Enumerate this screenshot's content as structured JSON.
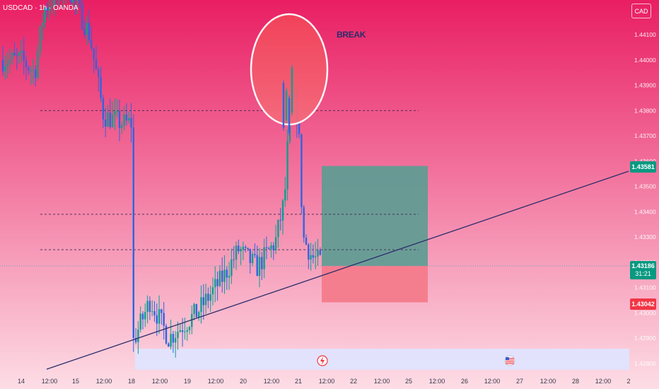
{
  "header": {
    "symbol": "USDCAD",
    "interval": "1h",
    "exchange": "OANDA",
    "title": "USDCAD · 1h · OANDA"
  },
  "currency_button": {
    "label": "CAD"
  },
  "annotation": {
    "label": "BREAK"
  },
  "price_tags": {
    "target": "1.43581",
    "current": "1.43186",
    "countdown": "31:21",
    "stop": "1.43042"
  },
  "event_icons": [
    {
      "name": "lightning-event-icon"
    },
    {
      "name": "us-flag-event-icon"
    }
  ],
  "colors": {
    "bg_top": "#e91e63",
    "bg_bottom": "#fddde6",
    "candle_up": "#0e9f8d",
    "candle_down": "#2f64e0",
    "target_zone": "#5d9c93",
    "stop_zone": "#f47b8b",
    "trendline": "#2b2d6b",
    "circle_fill": "#f44e62",
    "tag_green": "#089981",
    "tag_red": "#f23645"
  },
  "chart_data": {
    "type": "candlestick",
    "symbol": "USDCAD",
    "interval": "1h",
    "ylim": [
      1.4275,
      1.4425
    ],
    "y_ticks": [
      "1.44100",
      "1.44000",
      "1.43900",
      "1.43800",
      "1.43700",
      "1.43600",
      "1.43500",
      "1.43400",
      "1.43300",
      "1.43200",
      "1.43100",
      "1.43000",
      "1.42900",
      "1.42800"
    ],
    "x_ticks": [
      "14",
      "12:00",
      "15",
      "12:00",
      "18",
      "12:00",
      "19",
      "12:00",
      "20",
      "12:00",
      "21",
      "12:00",
      "22",
      "12:00",
      "25",
      "12:00",
      "26",
      "12:00",
      "27",
      "12:00",
      "28",
      "12:00",
      "2"
    ],
    "current_price": 1.43186,
    "horizontal_levels": [
      1.438,
      1.4339,
      1.4325
    ],
    "position": {
      "entry": 1.43186,
      "target": 1.43581,
      "stop": 1.43042
    },
    "trendline": {
      "from": [
        "15 12:00",
        1.4278
      ],
      "to": [
        "2",
        1.4356
      ]
    },
    "ohlc_anchors": [
      {
        "t": "14 00:00",
        "p": 1.44
      },
      {
        "t": "14 06:00",
        "p": 1.4395
      },
      {
        "t": "14 10:00",
        "p": 1.442
      },
      {
        "t": "14 20:00",
        "p": 1.443
      },
      {
        "t": "15 06:00",
        "p": 1.441
      },
      {
        "t": "15 12:00",
        "p": 1.4378
      },
      {
        "t": "15 20:00",
        "p": 1.4375
      },
      {
        "t": "16 00:00",
        "p": 1.4375
      },
      {
        "t": "18 00:00",
        "p": 1.4287
      },
      {
        "t": "18 08:00",
        "p": 1.4305
      },
      {
        "t": "18 16:00",
        "p": 1.429
      },
      {
        "t": "19 04:00",
        "p": 1.43
      },
      {
        "t": "19 16:00",
        "p": 1.4315
      },
      {
        "t": "19 22:00",
        "p": 1.4325
      },
      {
        "t": "20 06:00",
        "p": 1.4318
      },
      {
        "t": "20 14:00",
        "p": 1.4328
      },
      {
        "t": "20 18:00",
        "p": 1.4345
      },
      {
        "t": "20 20:00",
        "p": 1.4376
      },
      {
        "t": "20 22:00",
        "p": 1.4386
      },
      {
        "t": "21 00:00",
        "p": 1.4375
      },
      {
        "t": "21 02:00",
        "p": 1.433
      },
      {
        "t": "21 06:00",
        "p": 1.4322
      },
      {
        "t": "21 10:00",
        "p": 1.432
      },
      {
        "t": "21 12:00",
        "p": 1.43186
      }
    ]
  }
}
